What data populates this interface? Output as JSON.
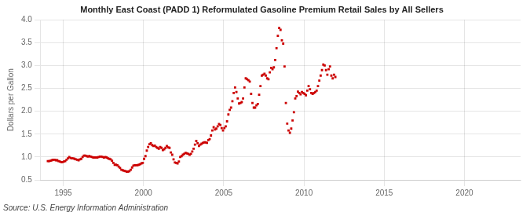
{
  "chart_data": {
    "type": "scatter",
    "title": "Monthly East Coast (PADD 1) Reformulated Gasoline Premium Retail Sales by All Sellers",
    "ylabel": "Dollars per Gallon",
    "annotations": [
      "Source: U.S. Energy Information Administration"
    ],
    "xlim": [
      1993.6,
      2023.5
    ],
    "xticks": [
      1995,
      2000,
      2005,
      2010,
      2015,
      2020
    ],
    "ylim": [
      0.5,
      4.0
    ],
    "yticks": [
      0.5,
      {
        "value": 1.0,
        "label": "1.0"
      },
      1.5,
      {
        "value": 2.0,
        "label": "2.0"
      },
      2.5,
      {
        "value": 3.0,
        "label": "3.0"
      },
      3.5,
      {
        "value": 4.0,
        "label": "4.0"
      }
    ],
    "grid": true,
    "marker": "square",
    "color": "#cc0000",
    "x": [
      1994.041667,
      1994.125,
      1994.208333,
      1994.291667,
      1994.375,
      1994.458333,
      1994.541667,
      1994.625,
      1994.708333,
      1994.791667,
      1994.875,
      1994.958333,
      1995.041667,
      1995.125,
      1995.208333,
      1995.291667,
      1995.375,
      1995.458333,
      1995.541667,
      1995.625,
      1995.708333,
      1995.791667,
      1995.875,
      1995.958333,
      1996.041667,
      1996.125,
      1996.208333,
      1996.291667,
      1996.375,
      1996.458333,
      1996.541667,
      1996.625,
      1996.708333,
      1996.791667,
      1996.875,
      1996.958333,
      1997.041667,
      1997.125,
      1997.208333,
      1997.291667,
      1997.375,
      1997.458333,
      1997.541667,
      1997.625,
      1997.708333,
      1997.791667,
      1997.875,
      1997.958333,
      1998.041667,
      1998.125,
      1998.208333,
      1998.291667,
      1998.375,
      1998.458333,
      1998.541667,
      1998.625,
      1998.708333,
      1998.791667,
      1998.875,
      1998.958333,
      1999.041667,
      1999.125,
      1999.208333,
      1999.291667,
      1999.375,
      1999.458333,
      1999.541667,
      1999.625,
      1999.708333,
      1999.791667,
      1999.875,
      1999.958333,
      2000.041667,
      2000.125,
      2000.208333,
      2000.291667,
      2000.375,
      2000.458333,
      2000.541667,
      2000.625,
      2000.708333,
      2000.791667,
      2000.875,
      2000.958333,
      2001.041667,
      2001.125,
      2001.208333,
      2001.291667,
      2001.375,
      2001.458333,
      2001.541667,
      2001.625,
      2001.708333,
      2001.791667,
      2001.875,
      2001.958333,
      2002.041667,
      2002.125,
      2002.208333,
      2002.291667,
      2002.375,
      2002.458333,
      2002.541667,
      2002.625,
      2002.708333,
      2002.791667,
      2002.875,
      2002.958333,
      2003.041667,
      2003.125,
      2003.208333,
      2003.291667,
      2003.375,
      2003.458333,
      2003.541667,
      2003.625,
      2003.708333,
      2003.791667,
      2003.875,
      2003.958333,
      2004.041667,
      2004.125,
      2004.208333,
      2004.291667,
      2004.375,
      2004.458333,
      2004.541667,
      2004.625,
      2004.708333,
      2004.791667,
      2004.875,
      2004.958333,
      2005.041667,
      2005.125,
      2005.208333,
      2005.291667,
      2005.375,
      2005.458333,
      2005.541667,
      2005.625,
      2005.708333,
      2005.791667,
      2005.875,
      2005.958333,
      2006.041667,
      2006.125,
      2006.208333,
      2006.291667,
      2006.375,
      2006.458333,
      2006.541667,
      2006.625,
      2006.708333,
      2006.791667,
      2006.875,
      2006.958333,
      2007.041667,
      2007.125,
      2007.208333,
      2007.291667,
      2007.375,
      2007.458333,
      2007.541667,
      2007.625,
      2007.708333,
      2007.791667,
      2007.875,
      2007.958333,
      2008.041667,
      2008.125,
      2008.208333,
      2008.291667,
      2008.375,
      2008.458333,
      2008.541667,
      2008.625,
      2008.708333,
      2008.791667,
      2008.875,
      2008.958333,
      2009.041667,
      2009.125,
      2009.208333,
      2009.291667,
      2009.375,
      2009.458333,
      2009.541667,
      2009.625,
      2009.708333,
      2009.791667,
      2009.875,
      2009.958333,
      2010.041667,
      2010.125,
      2010.208333,
      2010.291667,
      2010.375,
      2010.458333,
      2010.541667,
      2010.625,
      2010.708333,
      2010.791667,
      2010.875,
      2010.958333,
      2011.041667,
      2011.125,
      2011.208333,
      2011.291667,
      2011.375,
      2011.458333,
      2011.541667,
      2011.625,
      2011.708333,
      2011.791667,
      2011.875,
      2011.958333
    ],
    "values": [
      0.91,
      0.91,
      0.92,
      0.93,
      0.94,
      0.94,
      0.93,
      0.93,
      0.91,
      0.9,
      0.89,
      0.89,
      0.9,
      0.91,
      0.94,
      0.97,
      1.0,
      0.98,
      0.97,
      0.97,
      0.96,
      0.95,
      0.94,
      0.93,
      0.95,
      0.96,
      1.0,
      1.03,
      1.03,
      1.02,
      1.01,
      1.02,
      1.01,
      1.0,
      0.99,
      0.99,
      0.99,
      0.99,
      1.0,
      1.01,
      1.01,
      1.0,
      0.99,
      1.0,
      0.99,
      0.97,
      0.96,
      0.95,
      0.92,
      0.87,
      0.83,
      0.83,
      0.82,
      0.79,
      0.76,
      0.72,
      0.71,
      0.7,
      0.69,
      0.68,
      0.68,
      0.69,
      0.72,
      0.77,
      0.81,
      0.82,
      0.82,
      0.82,
      0.83,
      0.84,
      0.86,
      0.87,
      0.96,
      1.02,
      1.14,
      1.22,
      1.28,
      1.3,
      1.26,
      1.24,
      1.25,
      1.22,
      1.2,
      1.18,
      1.22,
      1.2,
      1.15,
      1.17,
      1.2,
      1.24,
      1.21,
      1.2,
      1.1,
      1.05,
      0.95,
      0.88,
      0.87,
      0.86,
      0.9,
      1.0,
      1.02,
      1.05,
      1.07,
      1.09,
      1.08,
      1.07,
      1.05,
      1.07,
      1.12,
      1.18,
      1.27,
      1.35,
      1.3,
      1.24,
      1.27,
      1.29,
      1.31,
      1.32,
      1.32,
      1.31,
      1.37,
      1.39,
      1.47,
      1.58,
      1.65,
      1.6,
      1.62,
      1.67,
      1.72,
      1.7,
      1.63,
      1.58,
      1.63,
      1.67,
      1.78,
      1.93,
      2.03,
      2.08,
      2.22,
      2.4,
      2.52,
      2.42,
      2.28,
      2.17,
      2.18,
      2.2,
      2.28,
      2.52,
      2.72,
      2.7,
      2.68,
      2.65,
      2.38,
      2.18,
      2.08,
      2.08,
      2.13,
      2.16,
      2.36,
      2.55,
      2.78,
      2.8,
      2.82,
      2.78,
      2.72,
      2.7,
      2.85,
      2.95,
      2.92,
      2.96,
      3.12,
      3.38,
      3.65,
      3.82,
      3.78,
      3.55,
      3.48,
      2.98,
      2.18,
      1.73,
      1.58,
      1.53,
      1.62,
      1.8,
      1.98,
      2.28,
      2.33,
      2.43,
      2.4,
      2.37,
      2.42,
      2.4,
      2.38,
      2.35,
      2.45,
      2.55,
      2.48,
      2.4,
      2.38,
      2.4,
      2.42,
      2.45,
      2.55,
      2.67,
      2.78,
      2.9,
      3.02,
      3.0,
      2.9,
      2.8,
      2.92,
      2.98,
      2.78,
      2.72,
      2.8,
      2.75
    ]
  }
}
